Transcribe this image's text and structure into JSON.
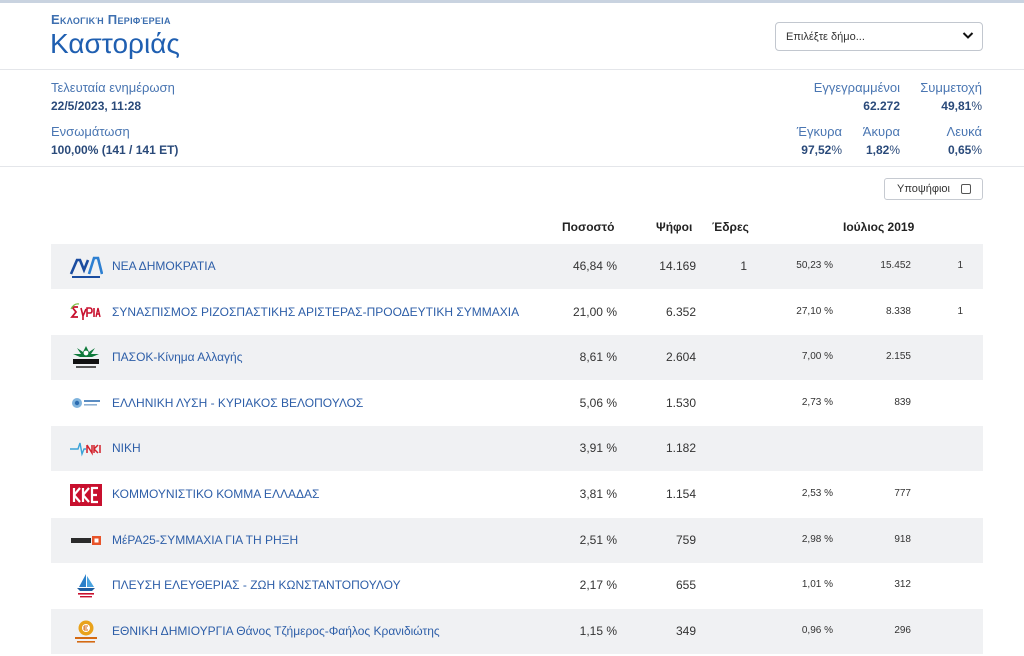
{
  "header": {
    "region_label": "Εκλογική Περιφέρεια",
    "region_name": "Καστοριάς",
    "municipality_select": {
      "placeholder": "Επιλέξτε δήμο..."
    }
  },
  "stats": {
    "last_update_label": "Τελευταία ενημέρωση",
    "last_update_value": "22/5/2023, 11:28",
    "integration_label": "Ενσωμάτωση",
    "integration_value": "100,00% (141 / 141 ΕΤ)",
    "registered_label": "Εγγεγραμμένοι",
    "registered_value": "62.272",
    "turnout_label": "Συμμετοχή",
    "turnout_value": "49,81",
    "valid_label": "Έγκυρα",
    "valid_value": "97,52",
    "invalid_label": "Άκυρα",
    "invalid_value": "1,82",
    "blank_label": "Λευκά",
    "blank_value": "0,65",
    "pct_symbol": "%"
  },
  "candidates_toggle": {
    "label": "Υποψήφιοι",
    "checked": false
  },
  "columns": {
    "percent": "Ποσοστό",
    "votes": "Ψήφοι",
    "seats": "Έδρες",
    "previous": "Ιούλιος 2019"
  },
  "parties": [
    {
      "name": "ΝΕΑ ΔΗΜΟΚΡΑΤΙΑ",
      "logo": "nd-logo",
      "pct": "46,84 %",
      "votes": "14.169",
      "seats": "1",
      "prev_pct": "50,23 %",
      "prev_votes": "15.452",
      "prev_seats": "1"
    },
    {
      "name": "ΣΥΝΑΣΠΙΣΜΟΣ ΡΙΖΟΣΠΑΣΤΙΚΗΣ ΑΡΙΣΤΕΡΑΣ-ΠΡΟΟΔΕΥΤΙΚΗ ΣΥΜΜΑΧΙΑ",
      "logo": "syriza-logo",
      "pct": "21,00 %",
      "votes": "6.352",
      "seats": "",
      "prev_pct": "27,10 %",
      "prev_votes": "8.338",
      "prev_seats": "1"
    },
    {
      "name": "ΠΑΣΟΚ-Κίνημα Αλλαγής",
      "logo": "pasok-logo",
      "pct": "8,61 %",
      "votes": "2.604",
      "seats": "",
      "prev_pct": "7,00 %",
      "prev_votes": "2.155",
      "prev_seats": ""
    },
    {
      "name": "ΕΛΛΗΝΙΚΗ ΛΥΣΗ - ΚΥΡΙΑΚΟΣ ΒΕΛΟΠΟΥΛΟΣ",
      "logo": "elliniki-lysi-logo",
      "pct": "5,06 %",
      "votes": "1.530",
      "seats": "",
      "prev_pct": "2,73 %",
      "prev_votes": "839",
      "prev_seats": ""
    },
    {
      "name": "ΝΙΚΗ",
      "logo": "niki-logo",
      "pct": "3,91 %",
      "votes": "1.182",
      "seats": "",
      "prev_pct": "",
      "prev_votes": "",
      "prev_seats": ""
    },
    {
      "name": "ΚΟΜΜΟΥΝΙΣΤΙΚΟ ΚΟΜΜΑ ΕΛΛΑΔΑΣ",
      "logo": "kke-logo",
      "pct": "3,81 %",
      "votes": "1.154",
      "seats": "",
      "prev_pct": "2,53 %",
      "prev_votes": "777",
      "prev_seats": ""
    },
    {
      "name": "ΜέΡΑ25-ΣΥΜΜΑΧΙΑ ΓΙΑ ΤΗ ΡΗΞΗ",
      "logo": "mera25-logo",
      "pct": "2,51 %",
      "votes": "759",
      "seats": "",
      "prev_pct": "2,98 %",
      "prev_votes": "918",
      "prev_seats": ""
    },
    {
      "name": "ΠΛΕΥΣΗ ΕΛΕΥΘΕΡΙΑΣ - ΖΩΗ ΚΩΝΣΤΑΝΤΟΠΟΥΛΟΥ",
      "logo": "plefsi-eleftherias-logo",
      "pct": "2,17 %",
      "votes": "655",
      "seats": "",
      "prev_pct": "1,01 %",
      "prev_votes": "312",
      "prev_seats": ""
    },
    {
      "name": "ΕΘΝΙΚΗ ΔΗΜΙΟΥΡΓΙΑ Θάνος Τζήμερος-Φαήλος Κρανιδιώτης",
      "logo": "ethniki-dimiourgia-logo",
      "pct": "1,15 %",
      "votes": "349",
      "seats": "",
      "prev_pct": "0,96 %",
      "prev_votes": "296",
      "prev_seats": ""
    }
  ]
}
